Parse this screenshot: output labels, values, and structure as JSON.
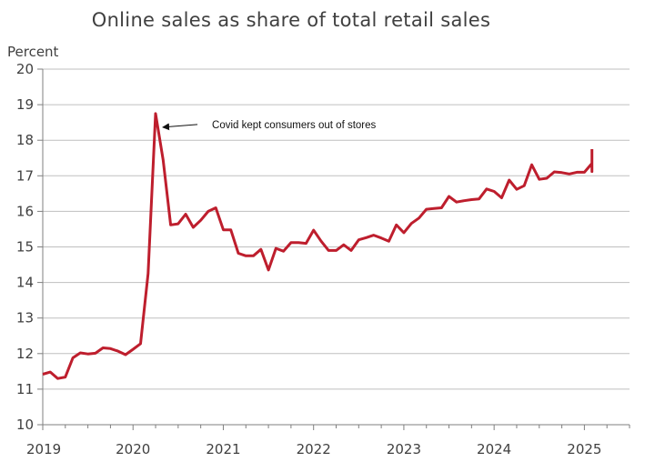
{
  "chart_data": {
    "type": "line",
    "title": "Online sales as share of total retail sales",
    "ylabel": "Percent",
    "xlabel": "",
    "ylim": [
      10,
      20
    ],
    "yticks": [
      10,
      11,
      12,
      13,
      14,
      15,
      16,
      17,
      18,
      19,
      20
    ],
    "xlim": [
      2019.0,
      2025.5
    ],
    "xticks": [
      "2019",
      "2020",
      "2021",
      "2022",
      "2023",
      "2024",
      "2025"
    ],
    "grid": true,
    "line_color": "#be1e2d",
    "series": [
      {
        "frequency": "quarterly-then-monthly",
        "points": [
          [
            "2019-01",
            11.42
          ],
          [
            "2019-02",
            11.48
          ],
          [
            "2019-03",
            11.3
          ],
          [
            "2019-04",
            11.34
          ],
          [
            "2019-05",
            11.88
          ],
          [
            "2019-06",
            12.02
          ],
          [
            "2019-07",
            11.99
          ],
          [
            "2019-08",
            12.01
          ],
          [
            "2019-09",
            12.16
          ],
          [
            "2019-10",
            12.14
          ],
          [
            "2019-11",
            12.07
          ],
          [
            "2019-12",
            11.97
          ],
          [
            "2020-01",
            12.12
          ],
          [
            "2020-02",
            12.28
          ],
          [
            "2020-03",
            14.25
          ],
          [
            "2020-04",
            18.75
          ],
          [
            "2020-05",
            17.45
          ],
          [
            "2020-06",
            15.62
          ],
          [
            "2020-07",
            15.65
          ],
          [
            "2020-08",
            15.92
          ],
          [
            "2020-09",
            15.55
          ],
          [
            "2020-10",
            15.75
          ],
          [
            "2020-11",
            16.0
          ],
          [
            "2020-12",
            16.1
          ],
          [
            "2021-01",
            15.48
          ],
          [
            "2021-02",
            15.48
          ],
          [
            "2021-03",
            14.82
          ],
          [
            "2021-04",
            14.75
          ],
          [
            "2021-05",
            14.75
          ],
          [
            "2021-06",
            14.93
          ],
          [
            "2021-07",
            14.35
          ],
          [
            "2021-08",
            14.96
          ],
          [
            "2021-09",
            14.88
          ],
          [
            "2021-10",
            15.12
          ],
          [
            "2021-11",
            15.12
          ],
          [
            "2021-12",
            15.1
          ],
          [
            "2022-01",
            15.47
          ],
          [
            "2022-02",
            15.16
          ],
          [
            "2022-03",
            14.9
          ],
          [
            "2022-04",
            14.9
          ],
          [
            "2022-05",
            15.06
          ],
          [
            "2022-06",
            14.9
          ],
          [
            "2022-07",
            15.2
          ],
          [
            "2022-08",
            15.26
          ],
          [
            "2022-09",
            15.33
          ],
          [
            "2022-10",
            15.25
          ],
          [
            "2022-11",
            15.16
          ],
          [
            "2022-12",
            15.62
          ],
          [
            "2023-01",
            15.4
          ],
          [
            "2023-02",
            15.66
          ],
          [
            "2023-03",
            15.81
          ],
          [
            "2023-04",
            16.06
          ],
          [
            "2023-05",
            16.08
          ],
          [
            "2023-06",
            16.1
          ],
          [
            "2023-07",
            16.42
          ],
          [
            "2023-08",
            16.26
          ],
          [
            "2023-09",
            16.3
          ],
          [
            "2023-10",
            16.33
          ],
          [
            "2023-11",
            16.35
          ],
          [
            "2023-12",
            16.63
          ],
          [
            "2024-01",
            16.56
          ],
          [
            "2024-02",
            16.38
          ],
          [
            "2024-03",
            16.88
          ],
          [
            "2024-04",
            16.62
          ],
          [
            "2024-05",
            16.72
          ],
          [
            "2024-06",
            17.31
          ],
          [
            "2024-07",
            16.9
          ],
          [
            "2024-08",
            16.93
          ],
          [
            "2024-09",
            17.11
          ],
          [
            "2024-10",
            17.09
          ],
          [
            "2024-11",
            17.05
          ],
          [
            "2024-12",
            17.1
          ],
          [
            "2025-01",
            17.1
          ],
          [
            "2025-02",
            17.35
          ],
          [
            "2025-02",
            17.12
          ],
          [
            "2025-02",
            17.75
          ]
        ]
      }
    ],
    "annotations": [
      {
        "text": "Covid kept consumers out of stores",
        "target": [
          "2020-04",
          18.75
        ]
      }
    ]
  }
}
